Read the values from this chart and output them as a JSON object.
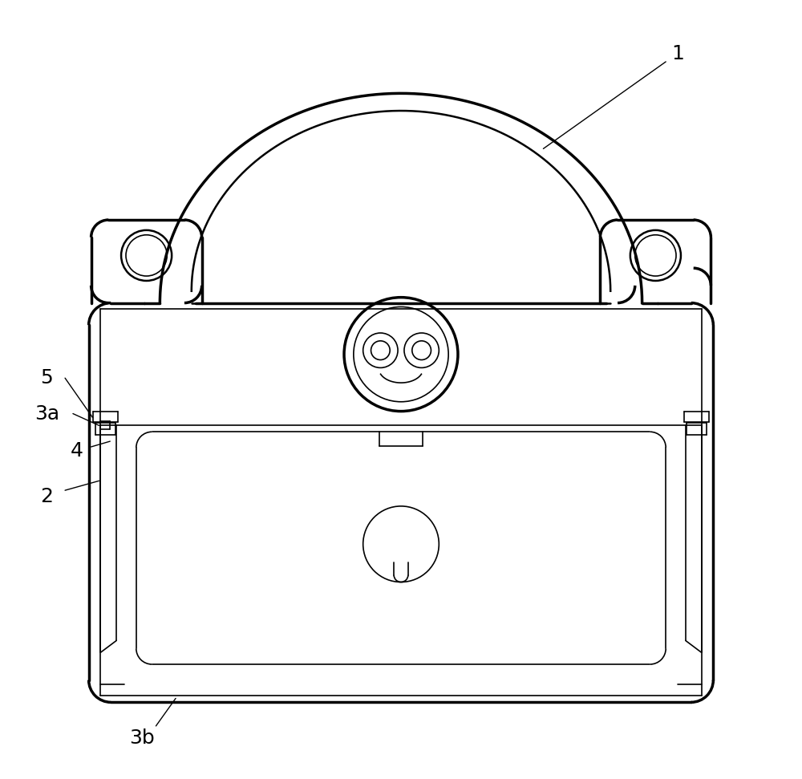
{
  "bg_color": "#ffffff",
  "line_color": "#000000",
  "lw_thin": 1.2,
  "lw_med": 1.8,
  "lw_thick": 2.5,
  "label_fontsize": 18,
  "fig_w": 10.0,
  "fig_h": 9.71
}
